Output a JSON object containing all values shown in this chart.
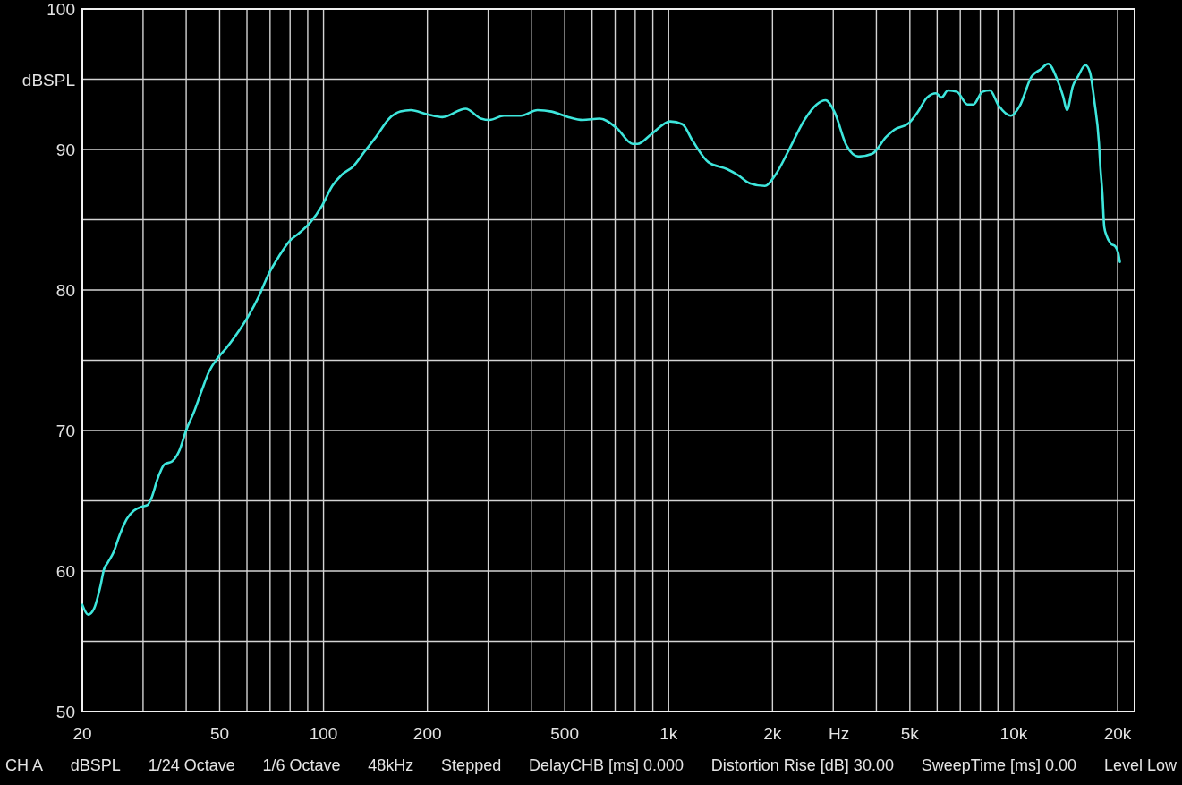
{
  "chart_data": {
    "type": "line",
    "xlabel": "Hz",
    "ylabel": "dBSPL",
    "log": "x",
    "grid": true,
    "xlim": [
      20,
      22400
    ],
    "ylim": [
      50,
      100
    ],
    "xticks": [
      20,
      {
        "value": 30,
        "label": null
      },
      {
        "value": 40,
        "label": null
      },
      50,
      {
        "value": 60,
        "label": null
      },
      {
        "value": 70,
        "label": null
      },
      {
        "value": 80,
        "label": null
      },
      {
        "value": 90,
        "label": null
      },
      100,
      200,
      {
        "value": 300,
        "label": null
      },
      {
        "value": 400,
        "label": null
      },
      500,
      {
        "value": 600,
        "label": null
      },
      {
        "value": 700,
        "label": null
      },
      {
        "value": 800,
        "label": null
      },
      {
        "value": 900,
        "label": null
      },
      {
        "value": 1000,
        "label": "1k"
      },
      {
        "value": 2000,
        "label": "2k"
      },
      {
        "value": 3000,
        "label": null
      },
      {
        "value": 4000,
        "label": null
      },
      {
        "value": 5000,
        "label": "5k"
      },
      {
        "value": 6000,
        "label": null
      },
      {
        "value": 7000,
        "label": null
      },
      {
        "value": 8000,
        "label": null
      },
      {
        "value": 9000,
        "label": null
      },
      {
        "value": 10000,
        "label": "10k"
      },
      {
        "value": 20000,
        "label": "20k"
      }
    ],
    "yticks": [
      50,
      {
        "value": 55,
        "label": null
      },
      60,
      {
        "value": 65,
        "label": null
      },
      70,
      {
        "value": 75,
        "label": null
      },
      80,
      {
        "value": 85,
        "label": null
      },
      90,
      {
        "value": 95,
        "label": null
      },
      100
    ],
    "series": [
      {
        "color": "#3ee6dc",
        "x": [
          20,
          20.8,
          21.6,
          22.6,
          23.1,
          23.7,
          24.6,
          25.6,
          26.9,
          28.2,
          30,
          30.9,
          31.6,
          33.2,
          34.6,
          36.4,
          38.1,
          40.1,
          42.1,
          44.3,
          46.6,
          49.5,
          52.4,
          56.9,
          60.4,
          65.1,
          69.2,
          74.3,
          79.8,
          84.5,
          91.5,
          99,
          106,
          113,
          122,
          132,
          142,
          155,
          167,
          179,
          200,
          221,
          258,
          286,
          303,
          333,
          373,
          417,
          458,
          513,
          563,
          632,
          709,
          786,
          813,
          892,
          1010,
          1096,
          1175,
          1303,
          1478,
          1583,
          1716,
          1901,
          2040,
          2235,
          2475,
          2685,
          2850,
          3020,
          3275,
          3553,
          3893,
          4270,
          4506,
          4980,
          5285,
          5612,
          5957,
          6174,
          6451,
          6850,
          7345,
          7641,
          8111,
          8529,
          9055,
          9804,
          10409,
          11270,
          11966,
          12580,
          13356,
          13895,
          14265,
          14834,
          15356,
          16137,
          16630,
          17134,
          17655,
          17820,
          18077,
          18294,
          18561,
          19125,
          19700,
          20103,
          20300
        ],
        "values": [
          57.6,
          56.9,
          57.3,
          59.0,
          60.1,
          60.6,
          61.3,
          62.5,
          63.7,
          64.3,
          64.6,
          64.7,
          65.1,
          66.7,
          67.6,
          67.8,
          68.5,
          70.1,
          71.3,
          72.8,
          74.2,
          75.2,
          75.9,
          77.1,
          78.1,
          79.6,
          81.1,
          82.4,
          83.5,
          84.0,
          84.8,
          86.0,
          87.4,
          88.2,
          88.8,
          89.9,
          90.9,
          92.2,
          92.7,
          92.8,
          92.5,
          92.3,
          92.9,
          92.2,
          92.1,
          92.4,
          92.4,
          92.8,
          92.7,
          92.3,
          92.1,
          92.2,
          91.5,
          90.4,
          90.4,
          91.1,
          92.0,
          91.8,
          90.6,
          89.1,
          88.6,
          88.2,
          87.6,
          87.4,
          88.2,
          90.0,
          92.1,
          93.2,
          93.5,
          92.7,
          90.3,
          89.5,
          89.7,
          90.9,
          91.4,
          91.9,
          92.7,
          93.7,
          94.0,
          93.7,
          94.2,
          94.1,
          93.2,
          93.2,
          94.1,
          94.2,
          93.1,
          92.4,
          93.1,
          95.2,
          95.7,
          96.1,
          95.0,
          93.8,
          92.8,
          94.5,
          95.2,
          96.0,
          95.5,
          93.4,
          90.5,
          88.8,
          86.8,
          84.5,
          83.9,
          83.3,
          83.1,
          82.6,
          82.0
        ]
      }
    ],
    "annotations": [
      "CH A",
      "dBSPL",
      "1/24 Octave",
      "1/6 Octave",
      "48kHz",
      "Stepped",
      "DelayCHB [ms] 0.000",
      "Distortion Rise [dB] 30.00",
      "SweepTime [ms] 0.00",
      "Level Low"
    ]
  }
}
